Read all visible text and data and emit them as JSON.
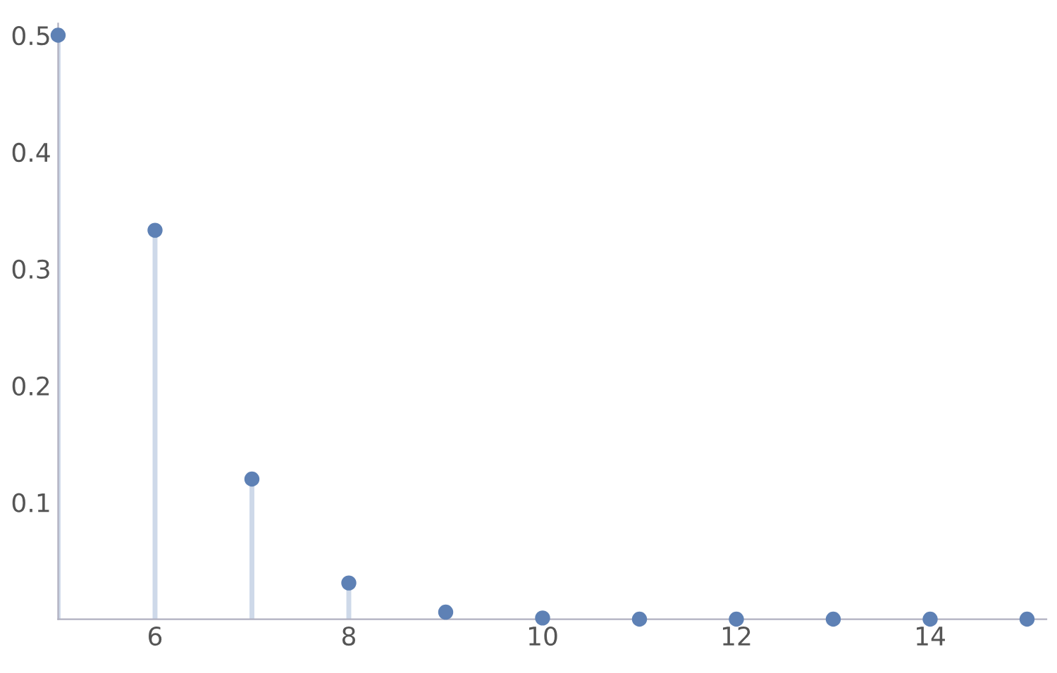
{
  "chart_data": {
    "type": "lollipop",
    "x": [
      5,
      6,
      7,
      8,
      9,
      10,
      11,
      12,
      13,
      14,
      15
    ],
    "series": [
      {
        "color": "#5e81b5",
        "values": [
          0.5,
          0.333,
          0.12,
          0.031,
          0.006,
          0.001,
          0,
          0,
          0,
          0,
          0
        ]
      }
    ],
    "xlim": [
      5,
      15.2
    ],
    "ylim": [
      0,
      0.51
    ],
    "xticks": [
      6,
      8,
      10,
      12,
      14
    ],
    "yticks": [
      0.1,
      0.2,
      0.3,
      0.4,
      0.5
    ],
    "marker": "circle",
    "grid": false,
    "legend": false
  }
}
